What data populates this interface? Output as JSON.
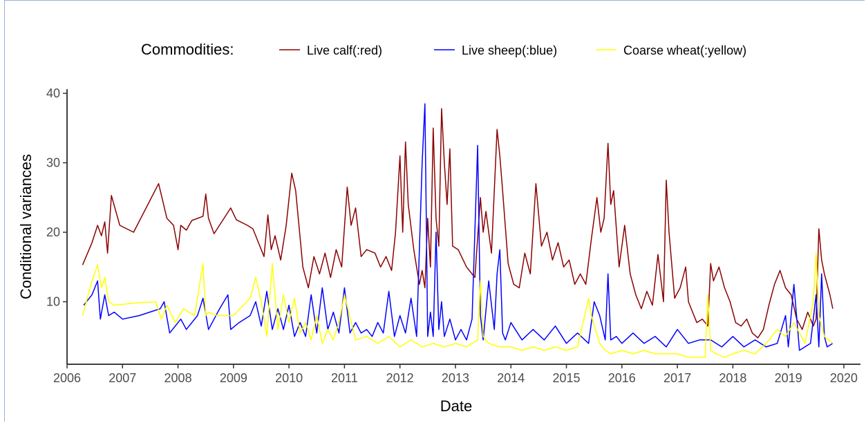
{
  "chart_data": {
    "type": "line",
    "title": "",
    "xlabel": "Date",
    "ylabel": "Conditional variances",
    "xlim": [
      2006.0,
      2020.3
    ],
    "ylim": [
      1.0,
      40.6
    ],
    "xticks": [
      2006,
      2007,
      2008,
      2009,
      2010,
      2011,
      2012,
      2013,
      2014,
      2015,
      2016,
      2017,
      2018,
      2019,
      2020
    ],
    "yticks": [
      10,
      20,
      30,
      40
    ],
    "legend": {
      "title": "Commodities:",
      "position": "top",
      "entries": [
        "Live calf(:red)",
        "Live sheep(:blue)",
        "Coarse wheat(:yellow)"
      ]
    },
    "grid": false,
    "series": [
      {
        "name": "Live calf(:red)",
        "color": "#8b0000",
        "x": [
          2006.28,
          2006.45,
          2006.55,
          2006.62,
          2006.68,
          2006.73,
          2006.8,
          2006.95,
          2007.2,
          2007.65,
          2007.8,
          2007.92,
          2008.0,
          2008.05,
          2008.15,
          2008.25,
          2008.45,
          2008.5,
          2008.55,
          2008.65,
          2008.95,
          2009.05,
          2009.25,
          2009.35,
          2009.45,
          2009.55,
          2009.62,
          2009.68,
          2009.75,
          2009.85,
          2009.95,
          2010.05,
          2010.12,
          2010.25,
          2010.35,
          2010.45,
          2010.55,
          2010.65,
          2010.75,
          2010.85,
          2010.95,
          2011.05,
          2011.12,
          2011.2,
          2011.3,
          2011.4,
          2011.55,
          2011.65,
          2011.75,
          2011.85,
          2011.92,
          2012.0,
          2012.05,
          2012.1,
          2012.15,
          2012.25,
          2012.35,
          2012.4,
          2012.45,
          2012.5,
          2012.55,
          2012.6,
          2012.65,
          2012.7,
          2012.75,
          2012.8,
          2012.85,
          2012.9,
          2012.95,
          2013.05,
          2013.2,
          2013.35,
          2013.45,
          2013.5,
          2013.55,
          2013.65,
          2013.75,
          2013.8,
          2013.85,
          2013.95,
          2014.05,
          2014.15,
          2014.25,
          2014.35,
          2014.45,
          2014.55,
          2014.65,
          2014.75,
          2014.85,
          2014.95,
          2015.05,
          2015.15,
          2015.25,
          2015.35,
          2015.45,
          2015.55,
          2015.62,
          2015.68,
          2015.75,
          2015.8,
          2015.85,
          2015.95,
          2016.05,
          2016.15,
          2016.25,
          2016.35,
          2016.45,
          2016.55,
          2016.65,
          2016.75,
          2016.8,
          2016.85,
          2016.95,
          2017.05,
          2017.15,
          2017.2,
          2017.25,
          2017.35,
          2017.45,
          2017.55,
          2017.6,
          2017.65,
          2017.75,
          2017.85,
          2017.95,
          2018.05,
          2018.15,
          2018.25,
          2018.35,
          2018.45,
          2018.55,
          2018.65,
          2018.75,
          2018.85,
          2018.95,
          2019.05,
          2019.15,
          2019.25,
          2019.35,
          2019.45,
          2019.5,
          2019.55,
          2019.6,
          2019.65,
          2019.75,
          2019.8
        ],
        "values": [
          15.3,
          18.5,
          21.0,
          19.5,
          21.5,
          17.0,
          25.3,
          21.0,
          20.0,
          27.0,
          22.0,
          21.0,
          17.5,
          21.0,
          20.3,
          21.7,
          22.3,
          25.5,
          22.0,
          19.8,
          23.5,
          21.8,
          21.0,
          20.5,
          18.5,
          16.5,
          22.5,
          17.5,
          19.5,
          16.0,
          21.0,
          28.5,
          26.0,
          15.0,
          12.0,
          16.5,
          14.0,
          17.0,
          13.5,
          17.5,
          15.0,
          26.5,
          21.0,
          23.5,
          16.5,
          17.5,
          17.0,
          15.0,
          16.5,
          14.5,
          20.0,
          31.0,
          20.0,
          33.0,
          24.0,
          17.5,
          12.5,
          14.5,
          12.0,
          22.0,
          15.0,
          35.0,
          22.0,
          18.0,
          37.8,
          30.0,
          24.0,
          32.0,
          18.0,
          17.5,
          15.0,
          13.5,
          25.0,
          20.0,
          23.0,
          17.0,
          34.8,
          31.0,
          26.0,
          15.5,
          12.5,
          12.0,
          17.0,
          14.0,
          27.0,
          18.0,
          20.0,
          16.0,
          18.5,
          15.0,
          16.0,
          12.5,
          14.0,
          12.5,
          19.0,
          25.0,
          20.0,
          22.0,
          32.8,
          24.0,
          26.0,
          15.0,
          21.0,
          14.0,
          11.0,
          9.0,
          11.5,
          9.5,
          16.8,
          10.0,
          27.5,
          20.0,
          10.5,
          12.0,
          15.0,
          10.0,
          9.0,
          7.0,
          7.5,
          6.5,
          15.5,
          13.0,
          15.0,
          12.0,
          10.0,
          7.0,
          6.5,
          7.5,
          5.5,
          4.8,
          6.0,
          9.5,
          12.5,
          14.5,
          12.0,
          11.0,
          7.5,
          6.0,
          8.5,
          6.5,
          7.5,
          20.5,
          16.0,
          14.0,
          11.0,
          9.0
        ]
      },
      {
        "name": "Live sheep(:blue)",
        "color": "#0000ff",
        "x": [
          2006.3,
          2006.45,
          2006.55,
          2006.6,
          2006.68,
          2006.75,
          2006.85,
          2007.0,
          2007.3,
          2007.68,
          2007.75,
          2007.85,
          2008.05,
          2008.15,
          2008.35,
          2008.45,
          2008.55,
          2008.65,
          2008.75,
          2008.9,
          2008.95,
          2009.1,
          2009.3,
          2009.4,
          2009.5,
          2009.6,
          2009.7,
          2009.8,
          2009.9,
          2010.0,
          2010.1,
          2010.2,
          2010.3,
          2010.4,
          2010.5,
          2010.6,
          2010.7,
          2010.8,
          2010.9,
          2011.0,
          2011.1,
          2011.2,
          2011.3,
          2011.4,
          2011.5,
          2011.6,
          2011.7,
          2011.8,
          2011.9,
          2012.0,
          2012.1,
          2012.2,
          2012.3,
          2012.4,
          2012.45,
          2012.5,
          2012.55,
          2012.6,
          2012.65,
          2012.7,
          2012.75,
          2012.8,
          2012.9,
          2013.0,
          2013.1,
          2013.2,
          2013.3,
          2013.4,
          2013.45,
          2013.5,
          2013.6,
          2013.7,
          2013.75,
          2013.8,
          2013.85,
          2013.9,
          2014.0,
          2014.2,
          2014.4,
          2014.6,
          2014.8,
          2015.0,
          2015.2,
          2015.4,
          2015.5,
          2015.6,
          2015.7,
          2015.75,
          2015.8,
          2015.9,
          2016.0,
          2016.2,
          2016.4,
          2016.6,
          2016.8,
          2017.0,
          2017.2,
          2017.4,
          2017.6,
          2017.8,
          2018.0,
          2018.2,
          2018.4,
          2018.6,
          2018.8,
          2018.95,
          2019.0,
          2019.1,
          2019.2,
          2019.4,
          2019.5,
          2019.55,
          2019.6,
          2019.65,
          2019.7,
          2019.8
        ],
        "values": [
          9.5,
          11.0,
          13.0,
          7.5,
          11.0,
          8.0,
          8.5,
          7.5,
          8.0,
          9.0,
          10.0,
          5.5,
          7.5,
          6.0,
          8.0,
          10.5,
          6.0,
          7.5,
          9.0,
          11.0,
          6.0,
          7.0,
          8.0,
          10.0,
          6.5,
          11.5,
          6.0,
          9.0,
          6.0,
          9.5,
          5.0,
          7.0,
          5.0,
          11.0,
          5.5,
          12.0,
          6.0,
          8.5,
          5.5,
          12.0,
          5.5,
          7.0,
          5.5,
          6.0,
          5.0,
          7.0,
          5.5,
          11.5,
          5.0,
          8.0,
          5.5,
          10.5,
          5.0,
          30.0,
          38.5,
          5.0,
          8.5,
          5.0,
          20.0,
          6.0,
          10.0,
          5.0,
          7.5,
          4.5,
          6.0,
          4.5,
          7.5,
          32.5,
          8.0,
          4.5,
          13.0,
          6.0,
          14.0,
          17.5,
          5.5,
          4.5,
          7.0,
          4.5,
          6.0,
          4.5,
          6.5,
          4.0,
          5.5,
          4.0,
          10.0,
          8.0,
          4.5,
          14.0,
          4.5,
          5.0,
          4.0,
          5.5,
          4.0,
          5.0,
          3.5,
          6.0,
          4.0,
          4.5,
          4.5,
          3.5,
          5.0,
          3.5,
          4.5,
          3.5,
          4.0,
          8.0,
          3.5,
          12.5,
          3.0,
          4.0,
          11.0,
          3.5,
          14.0,
          5.0,
          3.5,
          4.0
        ]
      },
      {
        "name": "Coarse wheat(:yellow)",
        "color": "#ffff00",
        "x": [
          2006.28,
          2006.45,
          2006.55,
          2006.62,
          2006.68,
          2006.75,
          2006.85,
          2007.2,
          2007.6,
          2007.7,
          2007.8,
          2007.95,
          2008.1,
          2008.3,
          2008.45,
          2008.5,
          2008.55,
          2008.7,
          2009.0,
          2009.3,
          2009.4,
          2009.5,
          2009.6,
          2009.7,
          2009.8,
          2009.9,
          2010.0,
          2010.1,
          2010.2,
          2010.3,
          2010.4,
          2010.5,
          2010.6,
          2010.7,
          2010.8,
          2010.9,
          2011.0,
          2011.2,
          2011.4,
          2011.6,
          2011.8,
          2012.0,
          2012.2,
          2012.4,
          2012.6,
          2012.8,
          2013.0,
          2013.2,
          2013.4,
          2013.45,
          2013.5,
          2013.6,
          2013.8,
          2014.0,
          2014.2,
          2014.4,
          2014.6,
          2014.8,
          2015.0,
          2015.2,
          2015.4,
          2015.45,
          2015.6,
          2015.7,
          2015.8,
          2016.0,
          2016.2,
          2016.4,
          2016.6,
          2016.8,
          2017.0,
          2017.2,
          2017.5,
          2017.55,
          2017.6,
          2017.7,
          2017.85,
          2018.0,
          2018.2,
          2018.4,
          2018.6,
          2018.8,
          2018.95,
          2019.1,
          2019.3,
          2019.45,
          2019.5,
          2019.55,
          2019.65,
          2019.8
        ],
        "values": [
          8.0,
          13.0,
          15.3,
          12.0,
          13.5,
          10.0,
          9.5,
          9.8,
          10.0,
          7.5,
          9.5,
          7.0,
          9.0,
          8.0,
          15.5,
          8.0,
          8.5,
          8.0,
          8.0,
          10.5,
          13.5,
          10.0,
          5.0,
          15.5,
          6.0,
          11.0,
          7.0,
          10.5,
          5.5,
          7.0,
          4.5,
          8.0,
          4.0,
          6.0,
          4.5,
          7.0,
          11.0,
          4.5,
          5.0,
          4.0,
          5.0,
          3.5,
          4.5,
          3.5,
          4.0,
          3.5,
          4.0,
          3.5,
          4.5,
          13.0,
          5.0,
          4.0,
          3.5,
          3.5,
          3.0,
          3.5,
          3.0,
          3.5,
          3.0,
          3.5,
          10.5,
          8.0,
          4.0,
          3.0,
          2.5,
          3.0,
          2.5,
          3.0,
          2.5,
          2.5,
          2.5,
          2.0,
          2.0,
          11.0,
          3.0,
          2.5,
          2.0,
          2.5,
          3.0,
          2.5,
          4.0,
          6.0,
          5.0,
          7.0,
          4.0,
          10.0,
          17.0,
          8.0,
          5.0,
          4.0
        ]
      }
    ]
  }
}
